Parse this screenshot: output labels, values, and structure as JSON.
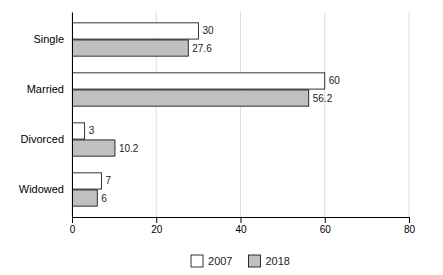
{
  "chart_data": {
    "type": "bar",
    "orientation": "horizontal",
    "categories": [
      "Single",
      "Married",
      "Divorced",
      "Widowed"
    ],
    "series": [
      {
        "name": "2007",
        "color": "#ffffff",
        "values": [
          30,
          60,
          3,
          7
        ]
      },
      {
        "name": "2018",
        "color": "#c0c0c0",
        "values": [
          27.6,
          56.2,
          10.2,
          6
        ]
      }
    ],
    "xlim": [
      0,
      80
    ],
    "xticks": [
      0,
      20,
      40,
      60,
      80
    ],
    "grid": true,
    "data_labels": true,
    "legend": "bottom"
  }
}
